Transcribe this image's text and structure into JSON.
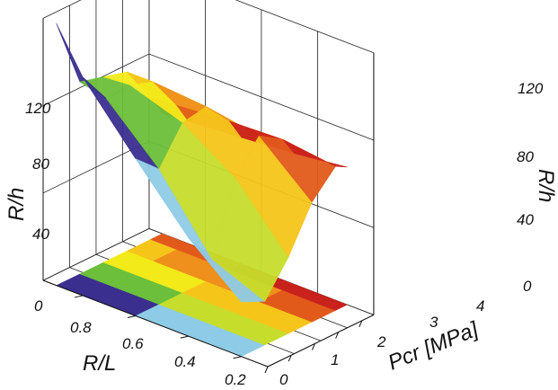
{
  "chart_data": {
    "type": "surface3d",
    "title": "",
    "axes": {
      "x": {
        "label": "Pcr [MPa]",
        "ticks": [
          "0",
          "1",
          "2",
          "3",
          "4"
        ],
        "range": [
          0,
          4.5
        ]
      },
      "y": {
        "label": "R/L",
        "ticks": [
          "0.2",
          "0.4",
          "0.6",
          "0.8"
        ],
        "range": [
          0.1,
          0.95
        ]
      },
      "z_left": {
        "label": "R/h",
        "ticks": [
          "0",
          "40",
          "80",
          "120"
        ],
        "range": [
          0,
          120
        ]
      },
      "z_right": {
        "label": "R/h",
        "ticks": [
          "0",
          "40",
          "80",
          "120"
        ],
        "range": [
          0,
          120
        ]
      }
    },
    "grid": true,
    "surface": {
      "pcr": [
        0,
        1,
        2,
        3,
        4,
        4.5
      ],
      "rl": [
        0.9,
        0.8,
        0.6,
        0.4,
        0.2
      ],
      "rh": [
        [
          120,
          88,
          85,
          82,
          65,
          55
        ],
        [
          100,
          85,
          86,
          82,
          66,
          56
        ],
        [
          72,
          62,
          78,
          80,
          68,
          58
        ],
        [
          45,
          30,
          62,
          76,
          69,
          60
        ],
        [
          25,
          20,
          35,
          55,
          66,
          63
        ]
      ]
    },
    "colormap": [
      "#b44fc4",
      "#3a2f8f",
      "#8ecbe6",
      "#6cbf3a",
      "#c6dd2c",
      "#f2ea19",
      "#f6c51a",
      "#ef8f1c",
      "#e25a1a",
      "#c9211b"
    ]
  }
}
